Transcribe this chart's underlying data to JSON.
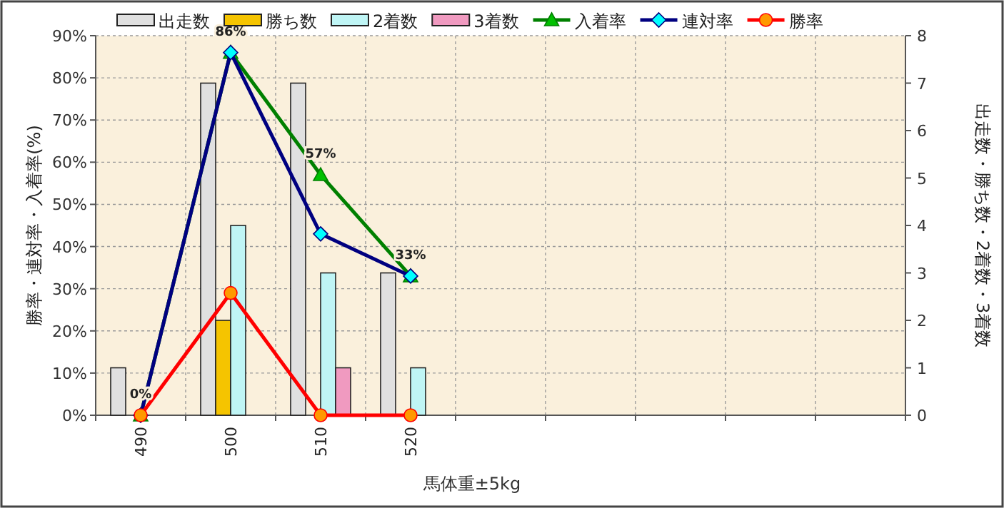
{
  "chart_data": {
    "type": "bar",
    "xlabel": "馬体重±5kg",
    "ylabel": "勝率・連対率・入着率(%)",
    "y2label": "出走数・勝ち数・2着数・3着数",
    "categories": [
      "490",
      "500",
      "510",
      "520",
      null,
      null,
      null,
      null,
      null
    ],
    "series": [
      {
        "name": "出走数",
        "axis": "y2",
        "color": "#e0e0e0",
        "values": [
          1,
          7,
          7,
          3,
          null,
          null,
          null,
          null,
          null
        ]
      },
      {
        "name": "勝ち数",
        "axis": "y2",
        "color": "#f5c400",
        "values": [
          0,
          2,
          0,
          0,
          null,
          null,
          null,
          null,
          null
        ]
      },
      {
        "name": "2着数",
        "axis": "y2",
        "color": "#bff5f5",
        "values": [
          0,
          4,
          3,
          1,
          null,
          null,
          null,
          null,
          null
        ]
      },
      {
        "name": "3着数",
        "axis": "y2",
        "color": "#f09ac0",
        "values": [
          0,
          0,
          1,
          0,
          null,
          null,
          null,
          null,
          null
        ]
      },
      {
        "name": "入着率",
        "type": "line",
        "color": "#008000",
        "marker": "triangle",
        "values": [
          0,
          86,
          57,
          33,
          null,
          null,
          null,
          null,
          null
        ],
        "value_labels": [
          "0%",
          "86%",
          "57%",
          "33%",
          null,
          null,
          null,
          null,
          null
        ]
      },
      {
        "name": "連対率",
        "type": "line",
        "color": "#000080",
        "marker": "diamond",
        "values": [
          0,
          86,
          43,
          33,
          null,
          null,
          null,
          null,
          null
        ]
      },
      {
        "name": "勝率",
        "type": "line",
        "color": "#ff0000",
        "marker": "circle",
        "values": [
          0,
          29,
          0,
          0,
          null,
          null,
          null,
          null,
          null
        ]
      }
    ],
    "ylim": [
      0,
      90
    ],
    "yticks": [
      {
        "value": 0,
        "label": "0%"
      },
      {
        "value": 10,
        "label": "10%"
      },
      {
        "value": 20,
        "label": "20%"
      },
      {
        "value": 30,
        "label": "30%"
      },
      {
        "value": 40,
        "label": "40%"
      },
      {
        "value": 50,
        "label": "50%"
      },
      {
        "value": 60,
        "label": "60%"
      },
      {
        "value": 70,
        "label": "70%"
      },
      {
        "value": 80,
        "label": "80%"
      },
      {
        "value": 90,
        "label": "90%"
      }
    ],
    "y2lim": [
      0,
      8
    ],
    "y2ticks": [
      0,
      1,
      2,
      3,
      4,
      5,
      6,
      7,
      8
    ],
    "grid": true,
    "legend": "top"
  }
}
